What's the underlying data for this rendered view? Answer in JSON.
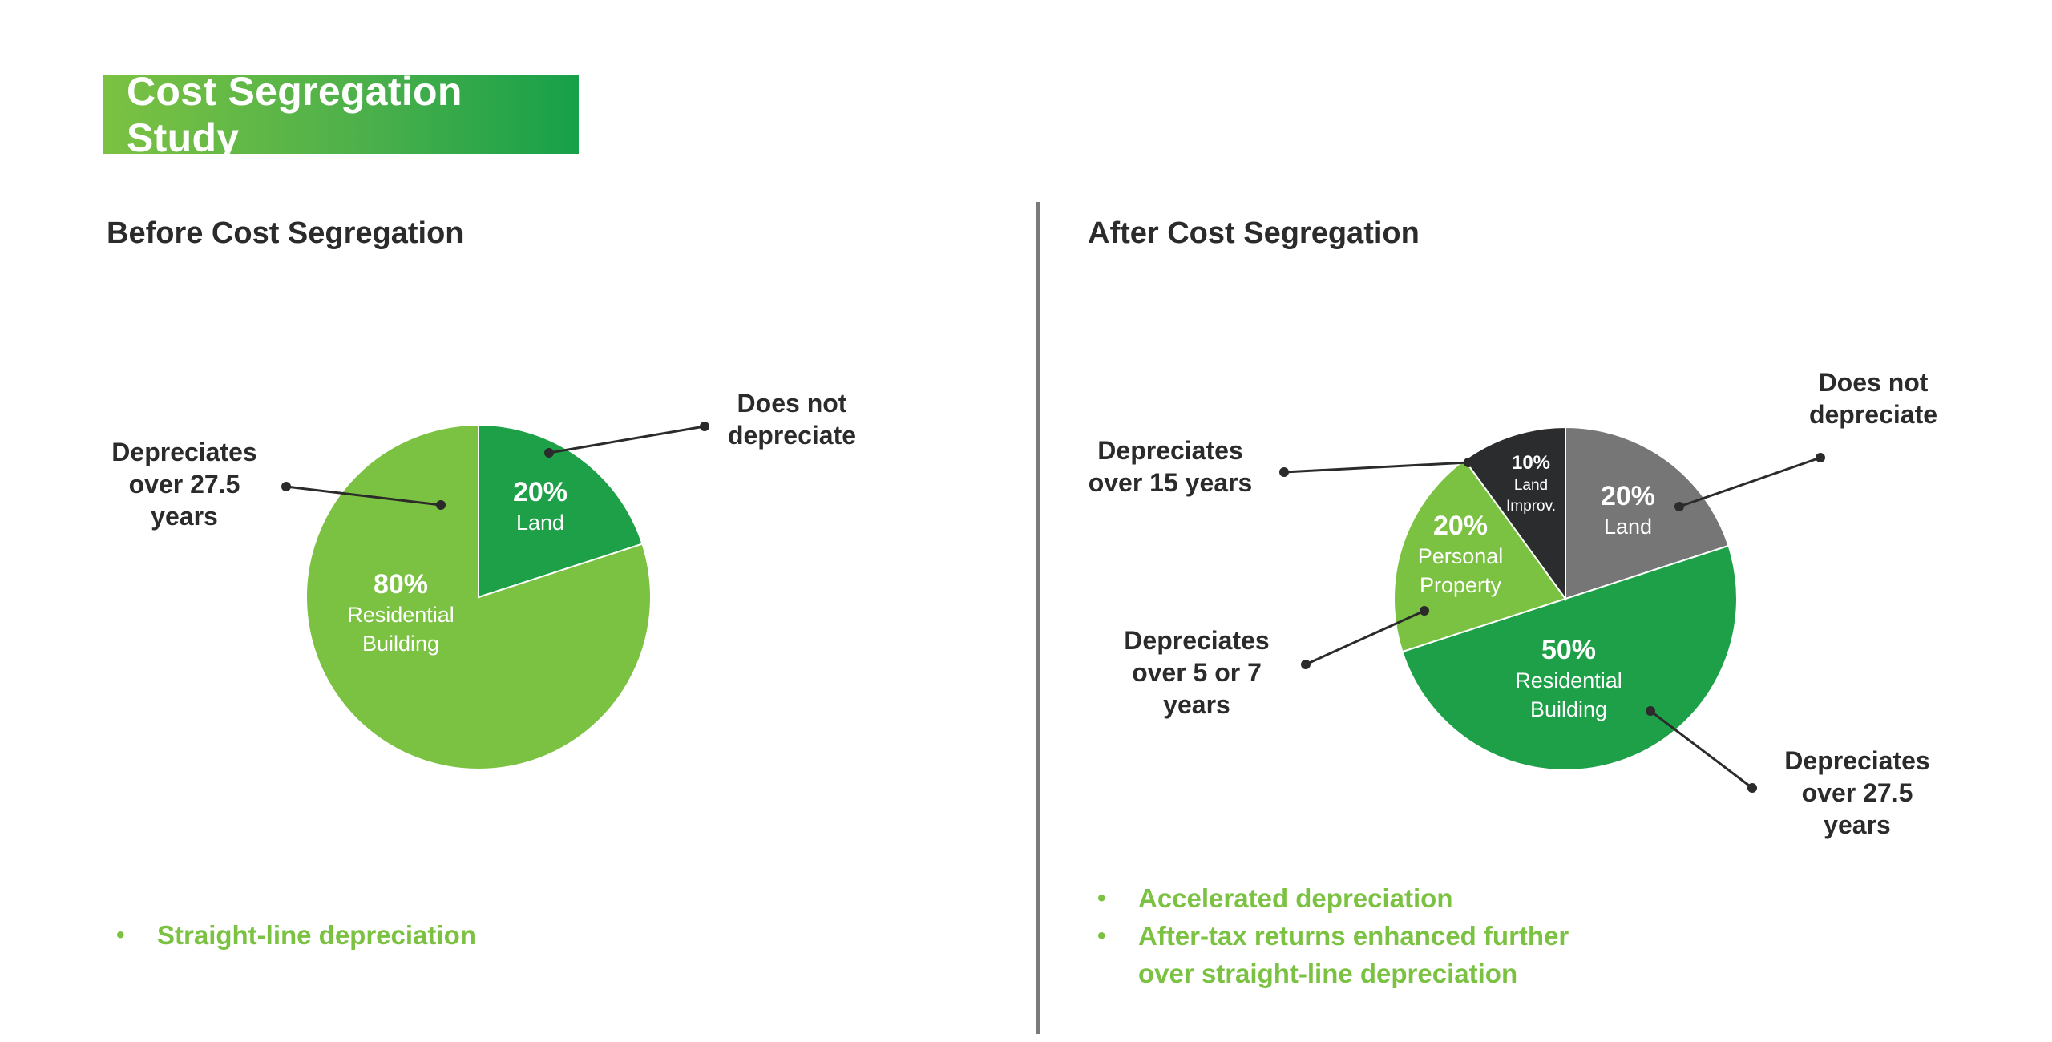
{
  "header": {
    "title": "Cost Segregation Study"
  },
  "colors": {
    "light_green": "#7cc242",
    "green": "#1da047",
    "gray": "#767676",
    "dark": "#2a2c2e",
    "banner_start": "#7cc242",
    "banner_end": "#16a04a",
    "bullet_text": "#7cc242"
  },
  "sections": {
    "before": {
      "title": "Before Cost Segregation",
      "bullets": [
        "Straight-line depreciation"
      ]
    },
    "after": {
      "title": "After Cost Segregation",
      "bullets": [
        "Accelerated depreciation",
        "After-tax returns enhanced further over straight-line depreciation"
      ]
    }
  },
  "chart_data": [
    {
      "type": "pie",
      "title": "Before Cost Segregation",
      "slices": [
        {
          "pct_label": "20%",
          "label": "Land",
          "value": 20,
          "color": "#1da047",
          "callout": "Does not depreciate"
        },
        {
          "pct_label": "80%",
          "label": "Residential Building",
          "value": 80,
          "color": "#7cc242",
          "callout": "Depreciates over 27.5 years"
        }
      ]
    },
    {
      "type": "pie",
      "title": "After Cost Segregation",
      "slices": [
        {
          "pct_label": "20%",
          "label": "Land",
          "value": 20,
          "color": "#767676",
          "callout": "Does not depreciate"
        },
        {
          "pct_label": "50%",
          "label": "Residential Building",
          "value": 50,
          "color": "#1da047",
          "callout": "Depreciates over 27.5 years"
        },
        {
          "pct_label": "20%",
          "label": "Personal Property",
          "value": 20,
          "color": "#7cc242",
          "callout": "Depreciates over 5 or 7 years"
        },
        {
          "pct_label": "10%",
          "label": "Land Improv.",
          "value": 10,
          "color": "#2a2c2e",
          "callout": "Depreciates over 15 years"
        }
      ]
    }
  ]
}
